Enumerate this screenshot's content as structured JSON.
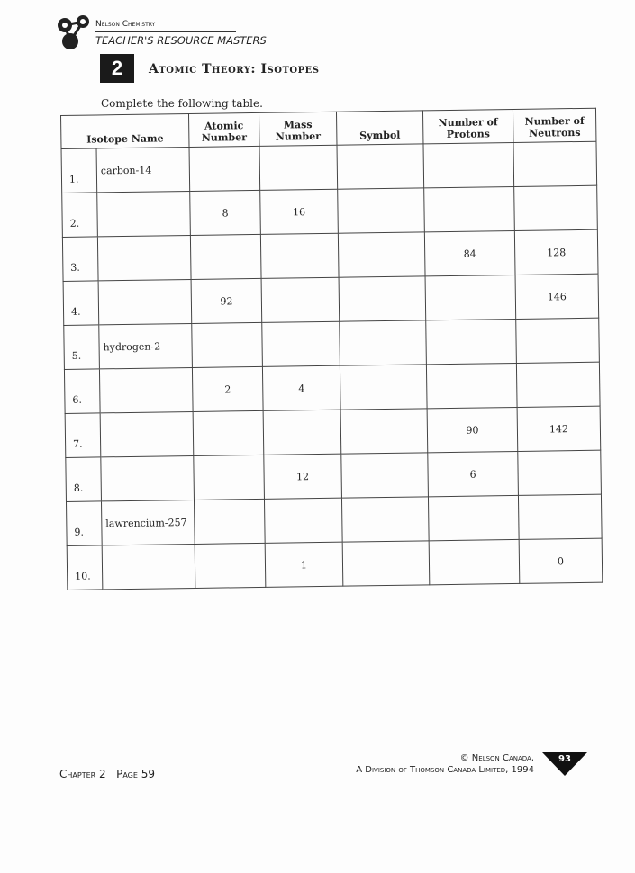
{
  "header": {
    "series": "Nelson Chemistry",
    "masters": "TEACHER'S RESOURCE MASTERS",
    "chapter_number": "2",
    "title": "Atomic Theory: Isotopes"
  },
  "instructions": "Complete the following table.",
  "table": {
    "columns": [
      "Isotope Name",
      "Atomic Number",
      "Mass Number",
      "Symbol",
      "Number of Protons",
      "Number of Neutrons"
    ],
    "rows": [
      {
        "n": "1.",
        "name": "carbon-14",
        "atomic": "",
        "mass": "",
        "symbol": "",
        "protons": "",
        "neutrons": ""
      },
      {
        "n": "2.",
        "name": "",
        "atomic": "8",
        "mass": "16",
        "symbol": "",
        "protons": "",
        "neutrons": ""
      },
      {
        "n": "3.",
        "name": "",
        "atomic": "",
        "mass": "",
        "symbol": "",
        "protons": "84",
        "neutrons": "128"
      },
      {
        "n": "4.",
        "name": "",
        "atomic": "92",
        "mass": "",
        "symbol": "",
        "protons": "",
        "neutrons": "146"
      },
      {
        "n": "5.",
        "name": "hydrogen-2",
        "atomic": "",
        "mass": "",
        "symbol": "",
        "protons": "",
        "neutrons": ""
      },
      {
        "n": "6.",
        "name": "",
        "atomic": "2",
        "mass": "4",
        "symbol": "",
        "protons": "",
        "neutrons": ""
      },
      {
        "n": "7.",
        "name": "",
        "atomic": "",
        "mass": "",
        "symbol": "",
        "protons": "90",
        "neutrons": "142"
      },
      {
        "n": "8.",
        "name": "",
        "atomic": "",
        "mass": "12",
        "symbol": "",
        "protons": "6",
        "neutrons": ""
      },
      {
        "n": "9.",
        "name": "lawrencium-257",
        "atomic": "",
        "mass": "",
        "symbol": "",
        "protons": "",
        "neutrons": ""
      },
      {
        "n": "10.",
        "name": "",
        "atomic": "",
        "mass": "1",
        "symbol": "",
        "protons": "",
        "neutrons": "0"
      }
    ]
  },
  "footer": {
    "chapter_page": "Chapter 2   Page 59",
    "copyright_line1": "© Nelson Canada,",
    "copyright_line2": "A Division of Thomson Canada Limited, 1994",
    "page_number": "93"
  }
}
